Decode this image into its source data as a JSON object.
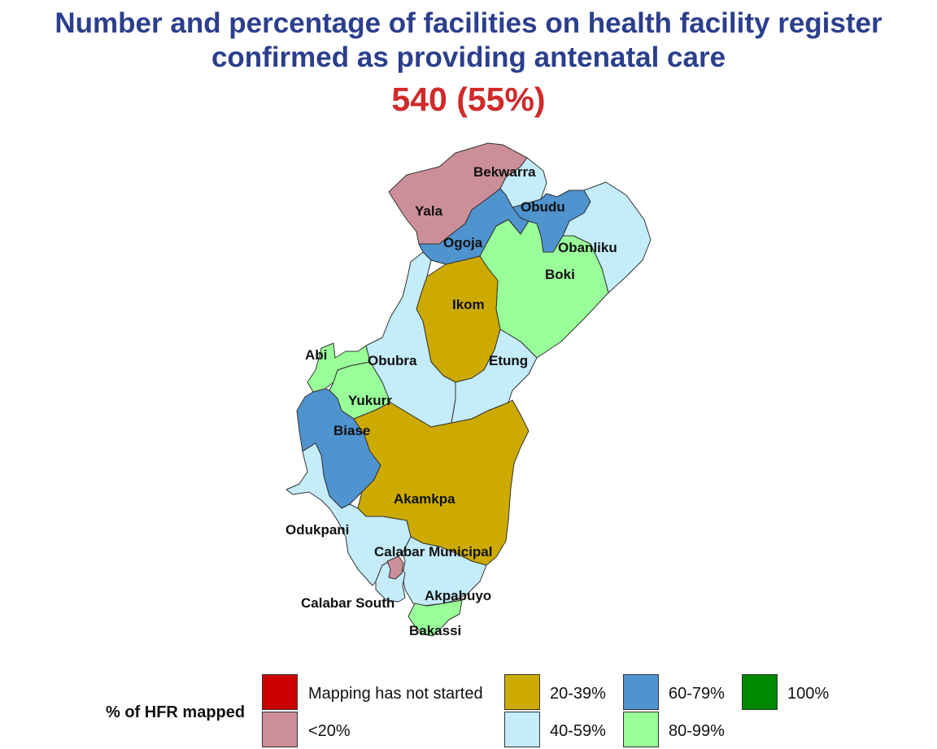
{
  "header": {
    "title_line1": "Number and percentage of facilities on health facility register",
    "title_line2": "confirmed as providing antenatal care",
    "summary": "540 (55%)"
  },
  "colors": {
    "title": "#2b3f8c",
    "summary": "#d12a2a",
    "not_started": "#cc0000",
    "lt20": "#cc8f99",
    "p20_39": "#ccaa00",
    "p40_59": "#c4ecfa",
    "p60_79": "#4f93cf",
    "p80_99": "#99ff99",
    "p100": "#008800"
  },
  "map": {
    "lgas": {
      "bekwarra": {
        "label": "Bekwarra",
        "category": "40-59%"
      },
      "yala": {
        "label": "Yala",
        "category": "<20%"
      },
      "obudu": {
        "label": "Obudu",
        "category": "60-79%"
      },
      "ogoja": {
        "label": "Ogoja",
        "category": "60-79%"
      },
      "obanliku": {
        "label": "Obanliku",
        "category": "40-59%"
      },
      "boki": {
        "label": "Boki",
        "category": "80-99%"
      },
      "ikom": {
        "label": "Ikom",
        "category": "20-39%"
      },
      "abi": {
        "label": "Abi",
        "category": "80-99%"
      },
      "obubra": {
        "label": "Obubra",
        "category": "40-59%"
      },
      "etung": {
        "label": "Etung",
        "category": "40-59%"
      },
      "yukurr": {
        "label": "Yukurr",
        "category": "80-99%"
      },
      "biase": {
        "label": "Biase",
        "category": "60-79%"
      },
      "akamkpa": {
        "label": "Akamkpa",
        "category": "20-39%"
      },
      "odukpani": {
        "label": "Odukpani",
        "category": "40-59%"
      },
      "calabar_municipal": {
        "label": "Calabar Municipal",
        "category": "<20%"
      },
      "akpabuyo": {
        "label": "Akpabuyo",
        "category": "40-59%"
      },
      "calabar_south": {
        "label": "Calabar South",
        "category": "40-59%"
      },
      "bakassi": {
        "label": "Bakassi",
        "category": "80-99%"
      }
    }
  },
  "legend": {
    "title": "% of HFR mapped",
    "items": {
      "not_started": "Mapping has not started",
      "lt20": "<20%",
      "p20_39": "20-39%",
      "p40_59": "40-59%",
      "p60_79": "60-79%",
      "p80_99": "80-99%",
      "p100": "100%"
    }
  }
}
